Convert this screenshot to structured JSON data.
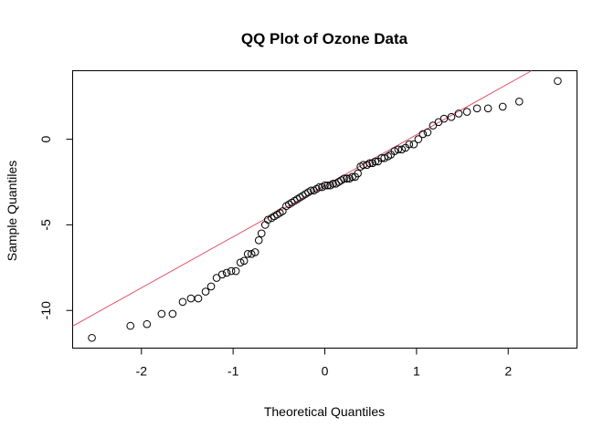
{
  "chart_data": {
    "type": "scatter",
    "title": "QQ Plot of Ozone Data",
    "xlabel": "Theoretical Quantiles",
    "ylabel": "Sample Quantiles",
    "xlim": [
      -2.75,
      2.75
    ],
    "ylim": [
      -12.2,
      4.0
    ],
    "x_ticks": [
      -2,
      -1,
      0,
      1,
      2
    ],
    "y_ticks": [
      -10,
      -5,
      0
    ],
    "grid": false,
    "point_color": "#000000",
    "line_color": "#DF536B",
    "reference_line": {
      "slope": 2.98,
      "intercept": -2.72
    },
    "points": [
      [
        -2.54,
        -11.6
      ],
      [
        -2.12,
        -10.9
      ],
      [
        -1.94,
        -10.8
      ],
      [
        -1.78,
        -10.2
      ],
      [
        -1.66,
        -10.2
      ],
      [
        -1.55,
        -9.5
      ],
      [
        -1.46,
        -9.3
      ],
      [
        -1.38,
        -9.3
      ],
      [
        -1.3,
        -8.9
      ],
      [
        -1.24,
        -8.6
      ],
      [
        -1.18,
        -8.1
      ],
      [
        -1.12,
        -7.9
      ],
      [
        -1.07,
        -7.8
      ],
      [
        -1.02,
        -7.7
      ],
      [
        -0.97,
        -7.7
      ],
      [
        -0.92,
        -7.2
      ],
      [
        -0.88,
        -7.1
      ],
      [
        -0.84,
        -6.7
      ],
      [
        -0.8,
        -6.7
      ],
      [
        -0.76,
        -6.6
      ],
      [
        -0.72,
        -5.9
      ],
      [
        -0.69,
        -5.5
      ],
      [
        -0.65,
        -5.0
      ],
      [
        -0.62,
        -4.7
      ],
      [
        -0.58,
        -4.6
      ],
      [
        -0.55,
        -4.5
      ],
      [
        -0.52,
        -4.4
      ],
      [
        -0.49,
        -4.3
      ],
      [
        -0.46,
        -4.2
      ],
      [
        -0.42,
        -3.9
      ],
      [
        -0.39,
        -3.8
      ],
      [
        -0.36,
        -3.7
      ],
      [
        -0.33,
        -3.6
      ],
      [
        -0.3,
        -3.5
      ],
      [
        -0.27,
        -3.4
      ],
      [
        -0.24,
        -3.3
      ],
      [
        -0.21,
        -3.2
      ],
      [
        -0.18,
        -3.1
      ],
      [
        -0.15,
        -3.0
      ],
      [
        -0.12,
        -3.0
      ],
      [
        -0.09,
        -2.9
      ],
      [
        -0.06,
        -2.8
      ],
      [
        -0.03,
        -2.8
      ],
      [
        0.0,
        -2.7
      ],
      [
        0.03,
        -2.7
      ],
      [
        0.06,
        -2.7
      ],
      [
        0.09,
        -2.6
      ],
      [
        0.12,
        -2.6
      ],
      [
        0.15,
        -2.5
      ],
      [
        0.18,
        -2.4
      ],
      [
        0.21,
        -2.3
      ],
      [
        0.24,
        -2.3
      ],
      [
        0.27,
        -2.3
      ],
      [
        0.3,
        -2.2
      ],
      [
        0.33,
        -2.2
      ],
      [
        0.36,
        -2.0
      ],
      [
        0.39,
        -1.6
      ],
      [
        0.42,
        -1.5
      ],
      [
        0.46,
        -1.5
      ],
      [
        0.49,
        -1.4
      ],
      [
        0.52,
        -1.4
      ],
      [
        0.55,
        -1.3
      ],
      [
        0.58,
        -1.3
      ],
      [
        0.62,
        -1.1
      ],
      [
        0.65,
        -1.1
      ],
      [
        0.69,
        -1.0
      ],
      [
        0.72,
        -0.9
      ],
      [
        0.76,
        -0.7
      ],
      [
        0.8,
        -0.6
      ],
      [
        0.84,
        -0.6
      ],
      [
        0.88,
        -0.5
      ],
      [
        0.92,
        -0.3
      ],
      [
        0.97,
        -0.3
      ],
      [
        1.02,
        0.0
      ],
      [
        1.07,
        0.3
      ],
      [
        1.12,
        0.4
      ],
      [
        1.18,
        0.8
      ],
      [
        1.24,
        1.0
      ],
      [
        1.3,
        1.2
      ],
      [
        1.38,
        1.3
      ],
      [
        1.46,
        1.5
      ],
      [
        1.55,
        1.6
      ],
      [
        1.66,
        1.8
      ],
      [
        1.78,
        1.8
      ],
      [
        1.94,
        1.9
      ],
      [
        2.12,
        2.2
      ],
      [
        2.54,
        3.4
      ]
    ]
  }
}
